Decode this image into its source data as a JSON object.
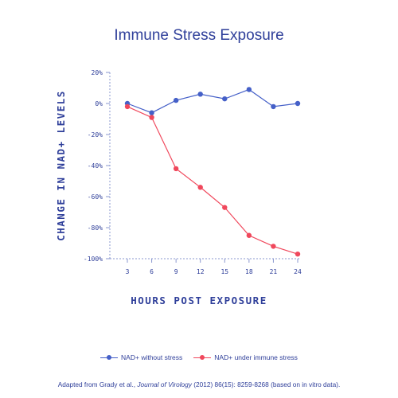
{
  "chart_data": {
    "type": "line",
    "title": "Immune Stress Exposure",
    "xlabel": "HOURS POST EXPOSURE",
    "ylabel": "CHANGE IN NAD+ LEVELS",
    "x": [
      3,
      6,
      9,
      12,
      15,
      18,
      21,
      24
    ],
    "x_tick_labels": [
      "3",
      "6",
      "9",
      "12",
      "15",
      "18",
      "21",
      "24"
    ],
    "y_ticks": [
      20,
      0,
      -20,
      -40,
      -60,
      -80,
      -100
    ],
    "y_tick_labels": [
      "20%",
      "0%",
      "-20%",
      "-40%",
      "-60%",
      "-80%",
      "-100%"
    ],
    "ylim": [
      -100,
      20
    ],
    "grid": false,
    "legend_position": "bottom",
    "series": [
      {
        "name": "NAD+ without stress",
        "color": "#4560c8",
        "values": [
          0,
          -6,
          2,
          6,
          3,
          9,
          -2,
          0
        ]
      },
      {
        "name": "NAD+ under immune stress",
        "color": "#f0485c",
        "values": [
          -2,
          -9,
          -42,
          -54,
          -67,
          -85,
          -92,
          -97
        ]
      }
    ]
  },
  "source": {
    "before": "Adapted from Grady et al., ",
    "journal": "Journal of Virology",
    "after": " (2012) 86(15): 8259-8268 (based on in vitro data)."
  }
}
